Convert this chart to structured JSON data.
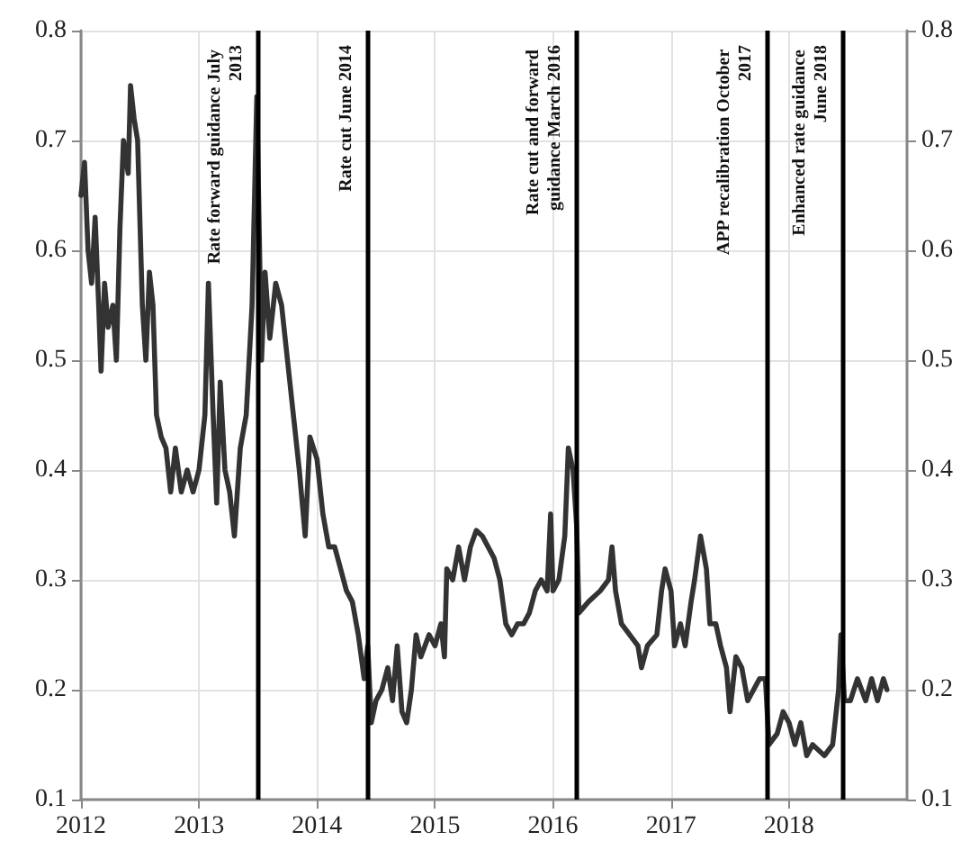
{
  "chart_data": {
    "type": "line",
    "xlim": [
      2012,
      2019
    ],
    "xticks": [
      2012,
      2013,
      2014,
      2015,
      2016,
      2017,
      2018
    ],
    "ylim": [
      0.1,
      0.8
    ],
    "yticks": [
      0.1,
      0.2,
      0.3,
      0.4,
      0.5,
      0.6,
      0.7,
      0.8
    ],
    "y2lim": [
      0.1,
      0.8
    ],
    "y2ticks": [
      0.1,
      0.2,
      0.3,
      0.4,
      0.5,
      0.6,
      0.7,
      0.8
    ],
    "grid": true,
    "marker": "none",
    "line_style": "solid",
    "series": [
      {
        "color": "#333333",
        "x": [
          2012.0,
          2012.03,
          2012.06,
          2012.09,
          2012.12,
          2012.15,
          2012.17,
          2012.2,
          2012.23,
          2012.27,
          2012.3,
          2012.33,
          2012.36,
          2012.4,
          2012.42,
          2012.45,
          2012.48,
          2012.52,
          2012.55,
          2012.58,
          2012.61,
          2012.64,
          2012.68,
          2012.72,
          2012.76,
          2012.8,
          2012.85,
          2012.9,
          2012.95,
          2013.0,
          2013.05,
          2013.08,
          2013.12,
          2013.15,
          2013.18,
          2013.22,
          2013.26,
          2013.3,
          2013.35,
          2013.4,
          2013.45,
          2013.49,
          2013.53,
          2013.56,
          2013.6,
          2013.65,
          2013.7,
          2013.75,
          2013.8,
          2013.85,
          2013.9,
          2013.94,
          2014.0,
          2014.05,
          2014.1,
          2014.15,
          2014.2,
          2014.25,
          2014.3,
          2014.35,
          2014.4,
          2014.43,
          2014.46,
          2014.5,
          2014.55,
          2014.6,
          2014.64,
          2014.68,
          2014.72,
          2014.76,
          2014.8,
          2014.84,
          2014.88,
          2014.95,
          2015.0,
          2015.05,
          2015.08,
          2015.1,
          2015.15,
          2015.2,
          2015.25,
          2015.3,
          2015.35,
          2015.4,
          2015.45,
          2015.5,
          2015.55,
          2015.6,
          2015.65,
          2015.7,
          2015.75,
          2015.8,
          2015.85,
          2015.9,
          2015.95,
          2015.98,
          2016.0,
          2016.05,
          2016.1,
          2016.13,
          2016.17,
          2016.2,
          2016.22,
          2016.3,
          2016.4,
          2016.47,
          2016.5,
          2016.53,
          2016.58,
          2016.65,
          2016.72,
          2016.75,
          2016.8,
          2016.88,
          2016.92,
          2016.95,
          2017.0,
          2017.03,
          2017.08,
          2017.12,
          2017.17,
          2017.2,
          2017.25,
          2017.3,
          2017.33,
          2017.38,
          2017.42,
          2017.47,
          2017.5,
          2017.55,
          2017.6,
          2017.65,
          2017.7,
          2017.75,
          2017.8,
          2017.83,
          2017.9,
          2017.95,
          2018.0,
          2018.05,
          2018.1,
          2018.15,
          2018.2,
          2018.3,
          2018.37,
          2018.42,
          2018.44,
          2018.47,
          2018.52,
          2018.58,
          2018.65,
          2018.7,
          2018.75,
          2018.8,
          2018.83
        ],
        "values": [
          0.65,
          0.68,
          0.6,
          0.57,
          0.63,
          0.55,
          0.49,
          0.57,
          0.53,
          0.55,
          0.5,
          0.62,
          0.7,
          0.67,
          0.75,
          0.72,
          0.7,
          0.55,
          0.5,
          0.58,
          0.55,
          0.45,
          0.43,
          0.42,
          0.38,
          0.42,
          0.38,
          0.4,
          0.38,
          0.4,
          0.45,
          0.57,
          0.45,
          0.37,
          0.48,
          0.4,
          0.38,
          0.34,
          0.42,
          0.45,
          0.55,
          0.74,
          0.5,
          0.58,
          0.52,
          0.57,
          0.55,
          0.5,
          0.45,
          0.4,
          0.34,
          0.43,
          0.41,
          0.36,
          0.33,
          0.33,
          0.31,
          0.29,
          0.28,
          0.25,
          0.21,
          0.24,
          0.17,
          0.19,
          0.2,
          0.22,
          0.19,
          0.24,
          0.18,
          0.17,
          0.2,
          0.25,
          0.23,
          0.25,
          0.24,
          0.26,
          0.23,
          0.31,
          0.3,
          0.33,
          0.3,
          0.33,
          0.345,
          0.34,
          0.33,
          0.32,
          0.3,
          0.26,
          0.25,
          0.26,
          0.26,
          0.27,
          0.29,
          0.3,
          0.29,
          0.36,
          0.29,
          0.3,
          0.34,
          0.42,
          0.4,
          0.35,
          0.27,
          0.28,
          0.29,
          0.3,
          0.33,
          0.29,
          0.26,
          0.25,
          0.24,
          0.22,
          0.24,
          0.25,
          0.29,
          0.31,
          0.29,
          0.24,
          0.26,
          0.24,
          0.28,
          0.3,
          0.34,
          0.31,
          0.26,
          0.26,
          0.24,
          0.22,
          0.18,
          0.23,
          0.22,
          0.19,
          0.2,
          0.21,
          0.21,
          0.15,
          0.16,
          0.18,
          0.17,
          0.15,
          0.17,
          0.14,
          0.15,
          0.14,
          0.15,
          0.2,
          0.25,
          0.19,
          0.19,
          0.21,
          0.19,
          0.21,
          0.19,
          0.21,
          0.2
        ]
      }
    ],
    "ref_lines": [
      {
        "axis": "x",
        "value": 2013.5,
        "label": "Rate forward guidance July 2013",
        "color": "#000000",
        "line_style": "solid"
      },
      {
        "axis": "x",
        "value": 2014.43,
        "label": "Rate cut June 2014",
        "color": "#000000",
        "line_style": "solid"
      },
      {
        "axis": "x",
        "value": 2016.2,
        "label": "Rate cut and forward guidance March 2016",
        "color": "#000000",
        "line_style": "solid"
      },
      {
        "axis": "x",
        "value": 2017.82,
        "label": "APP recalibration October 2017",
        "color": "#000000",
        "line_style": "solid"
      },
      {
        "axis": "x",
        "value": 2018.46,
        "label": "Enhanced rate guidance June 2018",
        "color": "#000000",
        "line_style": "solid"
      }
    ]
  }
}
